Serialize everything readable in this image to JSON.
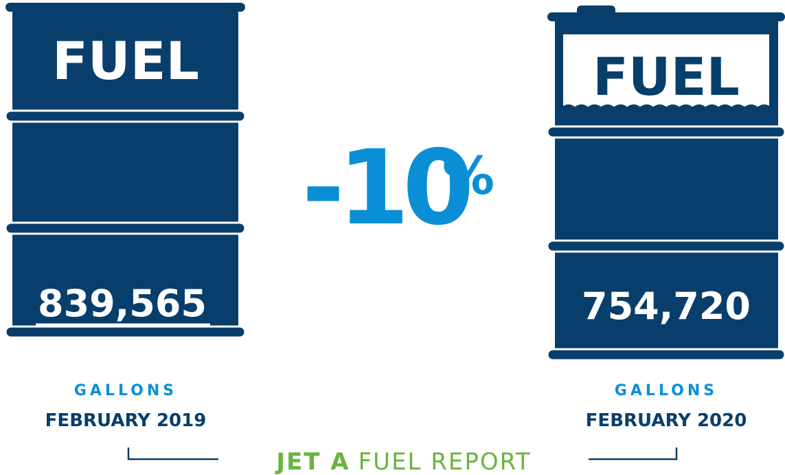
{
  "left": {
    "label": "FUEL",
    "amount": "839,565",
    "unit": "GALLONS",
    "period": "FEBRUARY 2019"
  },
  "right": {
    "label": "FUEL",
    "amount": "754,720",
    "unit": "GALLONS",
    "period": "FEBRUARY 2020"
  },
  "change": {
    "value": "-10",
    "suffix": "%"
  },
  "footer": {
    "highlight": "JET A",
    "text": "FUEL REPORT"
  }
}
